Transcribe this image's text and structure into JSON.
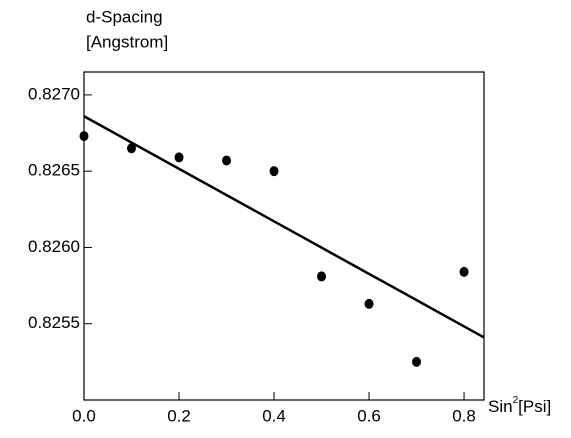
{
  "chart_data": {
    "type": "scatter",
    "y_label": [
      "d-Spacing",
      "[Angstrom]"
    ],
    "x_label": [
      "Sin",
      "2",
      "[Psi]"
    ],
    "x": [
      0,
      0.1,
      0.2,
      0.3,
      0.4,
      0.5,
      0.6,
      0.7,
      0.8
    ],
    "values": [
      0.82673,
      0.82665,
      0.82659,
      0.82657,
      0.8265,
      0.82581,
      0.82563,
      0.82525,
      0.82584
    ],
    "color": "#000000",
    "fit": {
      "x": [
        0,
        0.842
      ],
      "values": [
        0.82686,
        0.82541
      ]
    },
    "xlim": [
      0,
      0.842
    ],
    "ylim": [
      0.825,
      0.82715
    ],
    "xticks": [
      {
        "value": 0,
        "label": "0.0"
      },
      0.2,
      0.4,
      0.6,
      0.8
    ],
    "yticks": [
      {
        "value": 0.827,
        "label": "0.8270"
      },
      0.8265,
      {
        "value": 0.826,
        "label": "0.8260"
      },
      0.8255
    ],
    "grid": false
  }
}
